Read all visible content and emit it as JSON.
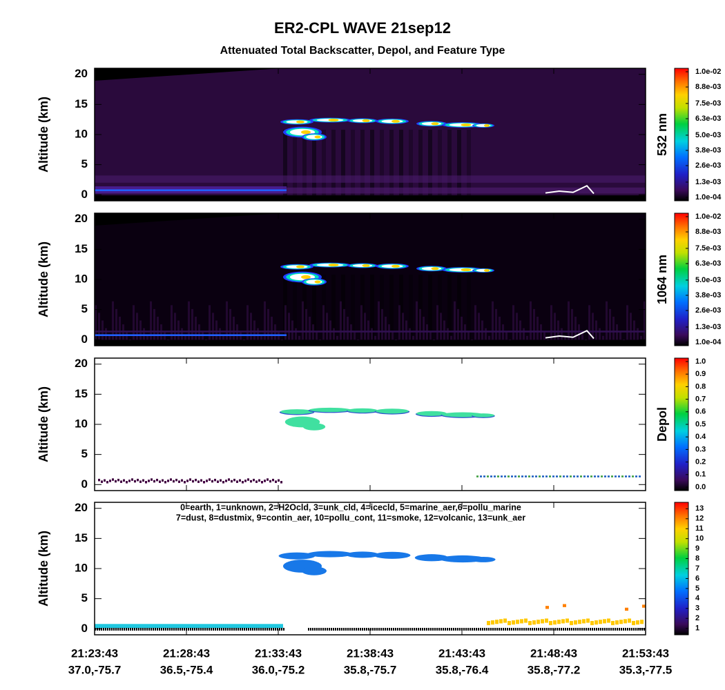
{
  "title": "ER2-CPL WAVE 21sep12",
  "subtitle": "Attenuated Total Backscatter, Depol, and Feature Type",
  "x_times": [
    "21:23:43",
    "21:28:43",
    "21:33:43",
    "21:38:43",
    "21:43:43",
    "21:48:43",
    "21:53:43"
  ],
  "x_positions": [
    "37.0,-75.7",
    "36.5,-75.4",
    "36.0,-75.2",
    "35.8,-75.7",
    "35.8,-76.4",
    "35.8,-77.2",
    "35.3,-77.5"
  ],
  "chart_data": [
    {
      "type": "heatmap",
      "ylabel": "Altitude (km)",
      "ylim": [
        -1,
        21
      ],
      "yticks": [
        0,
        5,
        10,
        15,
        20
      ],
      "colorbar_label": "532 nm",
      "clim": [
        0.0001,
        0.01
      ],
      "colorbar_ticks": [
        {
          "value": 0.0001,
          "label": "1.0e-04"
        },
        {
          "value": 0.0013,
          "label": "1.3e-03"
        },
        {
          "value": 0.0026,
          "label": "2.6e-03"
        },
        {
          "value": 0.0038,
          "label": "3.8e-03"
        },
        {
          "value": 0.005,
          "label": "5.0e-03"
        },
        {
          "value": 0.0063,
          "label": "6.3e-03"
        },
        {
          "value": 0.0075,
          "label": "7.5e-03"
        },
        {
          "value": 0.0088,
          "label": "8.8e-03"
        },
        {
          "value": 0.01,
          "label": "1.0e-02"
        }
      ]
    },
    {
      "type": "heatmap",
      "ylabel": "Altitude (km)",
      "ylim": [
        -1,
        21
      ],
      "yticks": [
        0,
        5,
        10,
        15,
        20
      ],
      "colorbar_label": "1064 nm",
      "clim": [
        0.0001,
        0.01
      ],
      "colorbar_ticks": [
        {
          "value": 0.0001,
          "label": "1.0e-04"
        },
        {
          "value": 0.0013,
          "label": "1.3e-03"
        },
        {
          "value": 0.0026,
          "label": "2.6e-03"
        },
        {
          "value": 0.0038,
          "label": "3.8e-03"
        },
        {
          "value": 0.005,
          "label": "5.0e-03"
        },
        {
          "value": 0.0063,
          "label": "6.3e-03"
        },
        {
          "value": 0.0075,
          "label": "7.5e-03"
        },
        {
          "value": 0.0088,
          "label": "8.8e-03"
        },
        {
          "value": 0.01,
          "label": "1.0e-02"
        }
      ]
    },
    {
      "type": "heatmap",
      "ylabel": "Altitude (km)",
      "ylim": [
        -1,
        21
      ],
      "yticks": [
        0,
        5,
        10,
        15,
        20
      ],
      "colorbar_label": "Depol",
      "clim": [
        0,
        1
      ],
      "colorbar_ticks": [
        {
          "value": 0,
          "label": "0.0"
        },
        0.1,
        0.2,
        0.3,
        0.4,
        0.5,
        0.6,
        0.7,
        0.8,
        0.9,
        {
          "value": 1,
          "label": "1.0"
        }
      ]
    },
    {
      "type": "heatmap",
      "ylabel": "Altitude (km)",
      "ylim": [
        -1,
        21
      ],
      "yticks": [
        0,
        5,
        10,
        15,
        20
      ],
      "clim": [
        0.7,
        13.3
      ],
      "colorbar_ticks": [
        1,
        2,
        3,
        4,
        5,
        6,
        7,
        8,
        9,
        10,
        11,
        12,
        13
      ],
      "annotations": [
        "0=earth, 1=unknown, 2=H2Ocld, 3=unk_cld, 4=icecld, 5=marine_aer,6=pollu_marine",
        "7=dust, 8=dustmix, 9=contin_aer, 10=pollu_cont, 11=smoke, 12=volcanic, 13=unk_aer"
      ]
    }
  ]
}
